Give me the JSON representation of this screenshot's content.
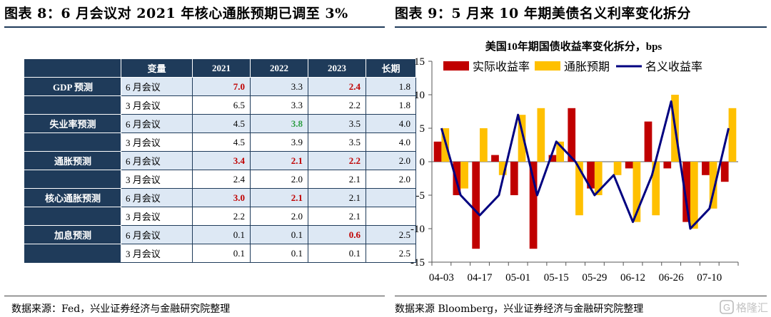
{
  "titles": {
    "left": "图表 8：6 月会议对 2021 年核心通胀预期已调至 3%",
    "right": "图表 9：5 月来 10 年期美债名义利率变化拆分"
  },
  "sources": {
    "left": "数据来源：Fed，兴业证券经济与金融研究院整理",
    "right": "数据来源 Bloomberg，兴业证券经济与金融研究院整理"
  },
  "watermark": "格隆汇",
  "table": {
    "headers": [
      "",
      "变量",
      "2021",
      "2022",
      "2023",
      "长期"
    ],
    "groups": [
      {
        "label": "GDP 预测",
        "rows": [
          {
            "meeting": "6 月会议",
            "values": [
              "7.0",
              "3.3",
              "2.4",
              "1.8"
            ],
            "colors": [
              "red",
              "",
              "red",
              ""
            ]
          },
          {
            "meeting": "3 月会议",
            "values": [
              "6.5",
              "3.3",
              "2.2",
              "1.8"
            ],
            "colors": [
              "",
              "",
              "",
              ""
            ]
          }
        ]
      },
      {
        "label": "失业率预测",
        "rows": [
          {
            "meeting": "6 月会议",
            "values": [
              "4.5",
              "3.8",
              "3.5",
              "4.0"
            ],
            "colors": [
              "",
              "green",
              "",
              ""
            ]
          },
          {
            "meeting": "3 月会议",
            "values": [
              "4.5",
              "3.9",
              "3.5",
              "4.0"
            ],
            "colors": [
              "",
              "",
              "",
              ""
            ]
          }
        ]
      },
      {
        "label": "通胀预测",
        "rows": [
          {
            "meeting": "6 月会议",
            "values": [
              "3.4",
              "2.1",
              "2.2",
              "2.0"
            ],
            "colors": [
              "red",
              "red",
              "red",
              ""
            ]
          },
          {
            "meeting": "3 月会议",
            "values": [
              "2.4",
              "2.0",
              "2.1",
              "2.0"
            ],
            "colors": [
              "",
              "",
              "",
              ""
            ]
          }
        ]
      },
      {
        "label": "核心通胀预测",
        "rows": [
          {
            "meeting": "6 月会议",
            "values": [
              "3.0",
              "2.1",
              "2.1",
              ""
            ],
            "colors": [
              "red",
              "red",
              "",
              ""
            ]
          },
          {
            "meeting": "3 月会议",
            "values": [
              "2.2",
              "2.0",
              "2.1",
              ""
            ],
            "colors": [
              "",
              "",
              "",
              ""
            ]
          }
        ]
      },
      {
        "label": "加息预测",
        "rows": [
          {
            "meeting": "6 月会议",
            "values": [
              "0.1",
              "0.1",
              "0.6",
              "2.5"
            ],
            "colors": [
              "",
              "",
              "red",
              ""
            ]
          },
          {
            "meeting": "3 月会议",
            "values": [
              "0.1",
              "0.1",
              "0.1",
              "2.5"
            ],
            "colors": [
              "",
              "",
              "",
              ""
            ]
          }
        ]
      }
    ]
  },
  "chart_data": {
    "type": "bar",
    "title": "美国10年期国债收益率变化拆分，bps",
    "legend_position": "top",
    "x": [
      "04-03",
      "04-10",
      "04-17",
      "04-24",
      "05-01",
      "05-08",
      "05-15",
      "05-22",
      "05-29",
      "06-05",
      "06-12",
      "06-19",
      "06-26",
      "07-03",
      "07-10",
      "07-17"
    ],
    "x_tick_labels": [
      "04-03",
      "04-17",
      "05-01",
      "05-15",
      "05-29",
      "06-12",
      "06-26",
      "07-10"
    ],
    "ylim": [
      -15,
      15
    ],
    "y_ticks": [
      -15,
      -10,
      -5,
      0,
      5,
      10,
      15
    ],
    "series": [
      {
        "name": "实际收益率",
        "type": "bar",
        "color": "#c00000",
        "values": [
          3,
          -5,
          -13,
          1,
          -5,
          -13,
          1,
          8,
          -4,
          0,
          -1,
          6,
          -1,
          -9,
          -2,
          -3
        ]
      },
      {
        "name": "通胀预期",
        "type": "bar",
        "color": "#ffc000",
        "values": [
          5,
          -4,
          5,
          -2,
          7,
          8,
          3,
          -8,
          -5,
          -2,
          -9,
          -8,
          10,
          -10,
          -7,
          8
        ]
      },
      {
        "name": "名义收益率",
        "type": "line",
        "color": "#000080",
        "values": [
          5,
          -5,
          -8,
          -5,
          7,
          -5,
          3,
          0,
          -5,
          -2,
          -9,
          -2,
          9,
          -10,
          -7,
          5
        ]
      }
    ]
  }
}
